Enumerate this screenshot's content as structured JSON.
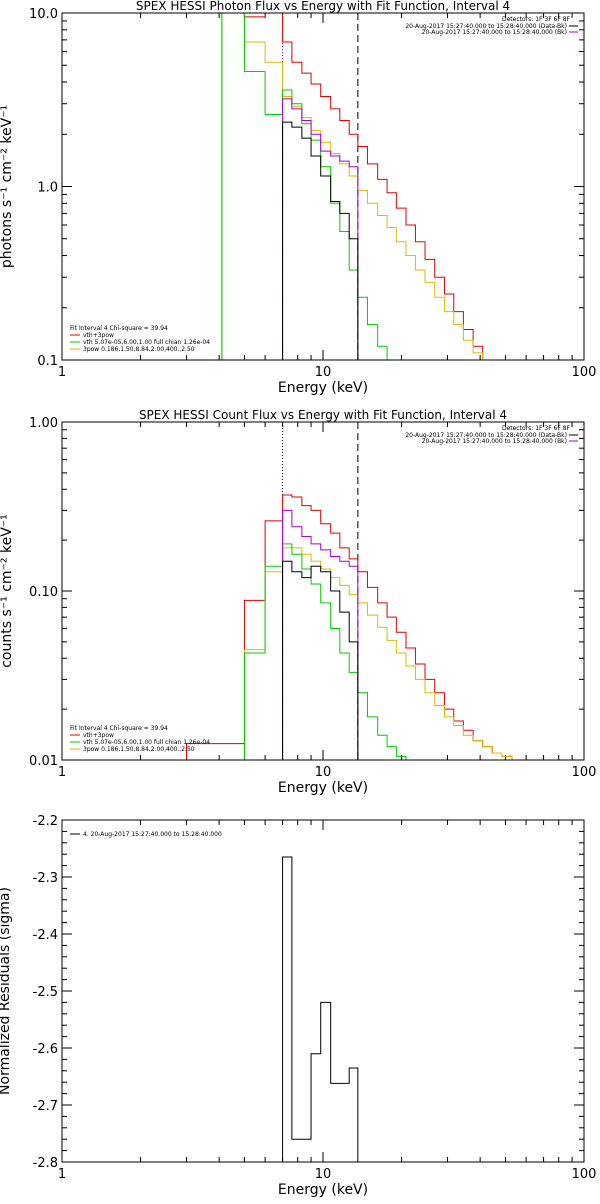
{
  "chart_data": [
    {
      "type": "step",
      "title": "SPEX HESSI Photon Flux vs Energy with Fit Function, Interval 4",
      "xlabel": "Energy (keV)",
      "ylabel": "photons s⁻¹ cm⁻² keV⁻¹",
      "xscale": "log",
      "yscale": "log",
      "xlim": [
        1,
        100
      ],
      "ylim": [
        0.1,
        10
      ],
      "x_ticks": [
        "1",
        "10",
        "100"
      ],
      "y_ticks": [
        "0.1",
        "1.0",
        "10.0"
      ],
      "vlines": [
        {
          "x": 7.0,
          "style": "dotted",
          "color": "#aa00cc"
        },
        {
          "x": 13.6,
          "style": "dashed",
          "color": "#000000"
        }
      ],
      "legend_left": {
        "header": "Fit Interval  4   Chi-square = 39.94",
        "entries": [
          {
            "label": "vth+3pow",
            "color": "#dd0000"
          },
          {
            "label": "vth 5.07e-05,6.00,1.00   full chian 1.26e-04",
            "color": "#00cc00"
          },
          {
            "label": "3pow 0.186,1.50,8.84,2.00,400.,2.50",
            "color": "#ddbb00"
          }
        ]
      },
      "legend_right": {
        "header": "Detectors: 1F 3F 6F 8F",
        "entries": [
          {
            "label": "20-Aug-2017 15:27:40.000 to 15:28:40.000 (Data-Bk)",
            "color": "#000000"
          },
          {
            "label": "20-Aug-2017 15:27:40.000 to 15:28:40.000 (Bk)",
            "color": "#aa00cc"
          }
        ]
      },
      "edges": [
        4.1,
        5.0,
        6.0,
        7.0,
        7.6,
        8.3,
        9.0,
        9.8,
        10.7,
        11.6,
        12.6,
        13.6,
        14.8,
        16.2,
        17.6,
        19.1,
        20.8,
        22.6,
        24.6,
        26.8,
        29.2,
        31.7,
        34.5,
        37.6,
        40.9,
        44.5
      ],
      "series": [
        {
          "color": "#dd0000",
          "values": [
            10,
            9.5,
            10.4,
            6.8,
            5.2,
            4.5,
            3.9,
            3.3,
            2.8,
            2.4,
            2.0,
            1.7,
            1.35,
            1.1,
            0.92,
            0.75,
            0.6,
            0.48,
            0.38,
            0.3,
            0.24,
            0.19,
            0.15,
            0.12,
            0.1
          ]
        },
        {
          "color": "#ddbb00",
          "values": [
            10,
            6.8,
            5.2,
            3.3,
            2.9,
            2.5,
            2.1,
            1.8,
            1.55,
            1.35,
            1.15,
            0.95,
            0.8,
            0.68,
            0.58,
            0.48,
            0.4,
            0.33,
            0.28,
            0.23,
            0.19,
            0.16,
            0.13,
            0.11,
            0.1
          ]
        },
        {
          "color": "#00cc00",
          "values": [
            10,
            4.6,
            2.6,
            3.6,
            3.0,
            2.3,
            1.85,
            1.3,
            0.8,
            0.55,
            0.33,
            0.23,
            0.16,
            0.12,
            0.1
          ]
        },
        {
          "color": "#aa00cc",
          "values": [
            null,
            null,
            null,
            3.2,
            2.8,
            2.4,
            2.0,
            1.6,
            1.5,
            1.4,
            1.3
          ]
        },
        {
          "color": "#000000",
          "values": [
            null,
            null,
            null,
            2.35,
            2.2,
            1.9,
            1.5,
            1.15,
            0.82,
            0.7,
            0.5
          ]
        }
      ]
    },
    {
      "type": "step",
      "title": "SPEX HESSI Count Flux vs Energy with Fit Function, Interval 4",
      "xlabel": "Energy (keV)",
      "ylabel": "counts s⁻¹ cm⁻² keV⁻¹",
      "xscale": "log",
      "yscale": "log",
      "xlim": [
        1,
        100
      ],
      "ylim": [
        0.01,
        1
      ],
      "x_ticks": [
        "1",
        "10",
        "100"
      ],
      "y_ticks": [
        "0.01",
        "0.10",
        "1.00"
      ],
      "vlines": [
        {
          "x": 7.0,
          "style": "dotted",
          "color": "#000000"
        },
        {
          "x": 13.6,
          "style": "dashed",
          "color": "#000000"
        }
      ],
      "legend_left": {
        "header": "Fit Interval  4   Chi-square = 39.94",
        "entries": [
          {
            "label": "vth+3pow",
            "color": "#dd0000"
          },
          {
            "label": "vth 5.07e-05,6.00,1.00   full chian 1.26e-04",
            "color": "#00cc00"
          },
          {
            "label": "3pow 0.186,1.50,8.84,2.00,400.,2.50",
            "color": "#ddbb00"
          }
        ]
      },
      "legend_right": {
        "header": "Detectors: 1F 3F 6F 8F",
        "entries": [
          {
            "label": "20-Aug-2017 15:27:40.000 to 15:28:40.000 (Data-Bk)",
            "color": "#000000"
          },
          {
            "label": "20-Aug-2017 15:27:40.000 to 15:28:40.000 (Bk)",
            "color": "#aa00cc"
          }
        ]
      },
      "edges": [
        3.0,
        4.1,
        5.0,
        6.0,
        7.0,
        7.6,
        8.3,
        9.0,
        9.8,
        10.7,
        11.6,
        12.6,
        13.6,
        14.8,
        16.2,
        17.6,
        19.1,
        20.8,
        22.6,
        24.6,
        26.8,
        29.2,
        31.7,
        34.5,
        37.6,
        40.9,
        44.5,
        48.5,
        53.0,
        58.0,
        63.0
      ],
      "series": [
        {
          "color": "#dd0000",
          "values": [
            0.0125,
            0.0125,
            0.088,
            0.26,
            0.37,
            0.36,
            0.32,
            0.3,
            0.25,
            0.22,
            0.18,
            0.155,
            0.13,
            0.105,
            0.085,
            0.07,
            0.057,
            0.046,
            0.037,
            0.03,
            0.025,
            0.02,
            0.017,
            0.015,
            0.013,
            0.012,
            0.011,
            0.0105,
            0.01,
            0.01
          ]
        },
        {
          "color": "#ddbb00",
          "values": [
            null,
            null,
            0.045,
            0.13,
            0.18,
            0.18,
            0.165,
            0.15,
            0.135,
            0.12,
            0.108,
            0.095,
            0.085,
            0.072,
            0.061,
            0.051,
            0.043,
            0.036,
            0.03,
            0.025,
            0.021,
            0.018,
            0.016,
            0.014,
            0.013,
            0.012,
            0.011,
            0.0105,
            0.01,
            0.01
          ]
        },
        {
          "color": "#00cc00",
          "values": [
            null,
            null,
            0.043,
            0.14,
            0.19,
            0.165,
            0.135,
            0.11,
            0.085,
            0.06,
            0.043,
            0.033,
            0.025,
            0.018,
            0.014,
            0.012,
            0.0105,
            0.01
          ]
        },
        {
          "color": "#aa00cc",
          "values": [
            null,
            null,
            null,
            null,
            0.3,
            0.24,
            0.21,
            0.19,
            0.175,
            0.16,
            0.15,
            0.14
          ]
        },
        {
          "color": "#000000",
          "values": [
            null,
            null,
            null,
            null,
            0.15,
            0.13,
            0.12,
            0.14,
            0.13,
            0.1,
            0.075,
            0.05
          ]
        }
      ]
    },
    {
      "type": "step",
      "title": "",
      "xlabel": "Energy (keV)",
      "ylabel": "Normalized Residuals (sigma)",
      "xscale": "log",
      "xlim": [
        1,
        100
      ],
      "ylim": [
        -2.8,
        -2.2
      ],
      "x_ticks": [
        "1",
        "10",
        "100"
      ],
      "y_ticks": [
        "-2.8",
        "-2.7",
        "-2.6",
        "-2.5",
        "-2.4",
        "-2.3",
        "-2.2"
      ],
      "legend": [
        {
          "label": "4. 20-Aug-2017 15:27:40.000 to 15:28:40.000",
          "color": "#000000"
        }
      ],
      "edges": [
        7.0,
        7.6,
        8.3,
        9.0,
        9.8,
        10.7,
        11.6,
        12.6,
        13.6
      ],
      "series": [
        {
          "color": "#000000",
          "values": [
            -2.265,
            -2.76,
            -2.76,
            -2.61,
            -2.52,
            -2.662,
            -2.662,
            -2.635
          ]
        }
      ]
    }
  ]
}
